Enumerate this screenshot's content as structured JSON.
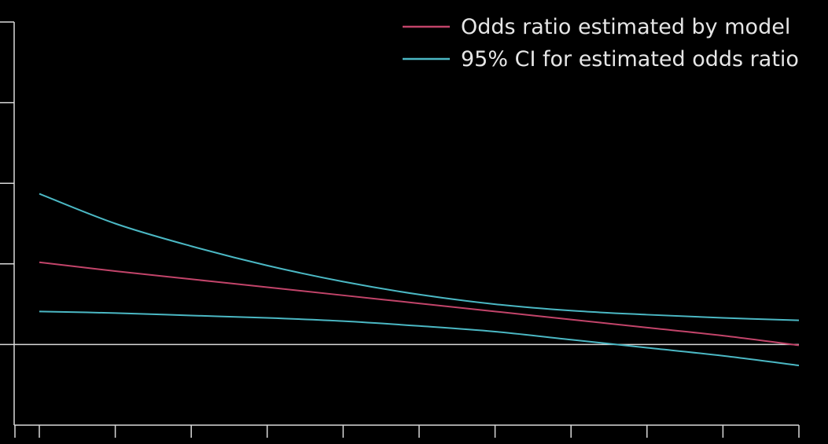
{
  "chart_data": {
    "type": "line",
    "title": "",
    "xlabel": "",
    "ylabel": "",
    "xlim": [
      0,
      10
    ],
    "ylim": [
      -1,
      4
    ],
    "reference_y": 0,
    "grid": false,
    "legend_position": "top-right",
    "x_tick_count": 10,
    "y_tick_count": 5,
    "series": [
      {
        "name": "Odds ratio estimated by model",
        "color": "#c2446a",
        "x": [
          0,
          1,
          2,
          3,
          4,
          5,
          6,
          7,
          8,
          9,
          10
        ],
        "y": [
          1.02,
          0.91,
          0.81,
          0.71,
          0.61,
          0.51,
          0.41,
          0.31,
          0.21,
          0.11,
          -0.01
        ]
      },
      {
        "name": "95% CI for estimated odds ratio",
        "color": "#4bb8c4",
        "x": [
          0,
          1,
          2,
          3,
          4,
          5,
          6,
          7,
          8,
          9,
          10
        ],
        "y": [
          1.87,
          1.5,
          1.22,
          0.98,
          0.78,
          0.62,
          0.5,
          0.42,
          0.37,
          0.33,
          0.3
        ]
      },
      {
        "name": "95% CI for estimated odds ratio",
        "color": "#4bb8c4",
        "show_in_legend": false,
        "x": [
          0,
          1,
          2,
          3,
          4,
          5,
          6,
          7,
          8,
          9,
          10
        ],
        "y": [
          0.41,
          0.39,
          0.36,
          0.33,
          0.29,
          0.23,
          0.16,
          0.06,
          -0.04,
          -0.14,
          -0.26
        ]
      }
    ]
  }
}
